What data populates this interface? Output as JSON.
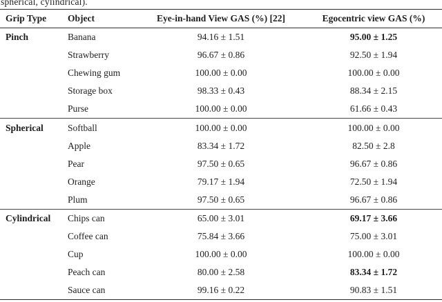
{
  "caption_fragment": "spherical, cylindrical).",
  "colors": {
    "text": "#1e1e1e",
    "rule": "#2e2e2e",
    "background": "#ffffff"
  },
  "table": {
    "columns": [
      "Grip Type",
      "Object",
      "Eye-in-hand View GAS (%) [22]",
      "Egocentric view GAS (%)"
    ],
    "groups": [
      {
        "grip_type": "Pinch",
        "rows": [
          {
            "object": "Banana",
            "eye_in_hand": "94.16 ± 1.51",
            "egocentric": "95.00 ± 1.25",
            "egocentric_bold": true
          },
          {
            "object": "Strawberry",
            "eye_in_hand": "96.67 ± 0.86",
            "egocentric": "92.50 ± 1.94",
            "egocentric_bold": false
          },
          {
            "object": "Chewing gum",
            "eye_in_hand": "100.00 ± 0.00",
            "egocentric": "100.00 ± 0.00",
            "egocentric_bold": false
          },
          {
            "object": "Storage box",
            "eye_in_hand": "98.33 ± 0.43",
            "egocentric": "88.34 ± 2.15",
            "egocentric_bold": false
          },
          {
            "object": "Purse",
            "eye_in_hand": "100.00 ± 0.00",
            "egocentric": "61.66 ± 0.43",
            "egocentric_bold": false
          }
        ]
      },
      {
        "grip_type": "Spherical",
        "rows": [
          {
            "object": "Softball",
            "eye_in_hand": "100.00 ± 0.00",
            "egocentric": "100.00 ± 0.00",
            "egocentric_bold": false
          },
          {
            "object": "Apple",
            "eye_in_hand": "83.34 ± 1.72",
            "egocentric": "82.50 ± 2.8",
            "egocentric_bold": false
          },
          {
            "object": "Pear",
            "eye_in_hand": "97.50 ± 0.65",
            "egocentric": "96.67 ± 0.86",
            "egocentric_bold": false
          },
          {
            "object": "Orange",
            "eye_in_hand": "79.17 ± 1.94",
            "egocentric": "72.50 ± 1.94",
            "egocentric_bold": false
          },
          {
            "object": "Plum",
            "eye_in_hand": "97.50 ± 0.65",
            "egocentric": "96.67 ± 0.86",
            "egocentric_bold": false
          }
        ]
      },
      {
        "grip_type": "Cylindrical",
        "rows": [
          {
            "object": "Chips can",
            "eye_in_hand": "65.00 ± 3.01",
            "egocentric": "69.17 ± 3.66",
            "egocentric_bold": true
          },
          {
            "object": "Coffee can",
            "eye_in_hand": "75.84 ± 3.66",
            "egocentric": "75.00 ± 3.01",
            "egocentric_bold": false
          },
          {
            "object": "Cup",
            "eye_in_hand": "100.00 ± 0.00",
            "egocentric": "100.00 ± 0.00",
            "egocentric_bold": false
          },
          {
            "object": "Peach can",
            "eye_in_hand": "80.00 ± 2.58",
            "egocentric": "83.34 ± 1.72",
            "egocentric_bold": true
          },
          {
            "object": "Sauce can",
            "eye_in_hand": "99.16 ± 0.22",
            "egocentric": "90.83 ± 1.51",
            "egocentric_bold": false
          }
        ]
      }
    ]
  }
}
